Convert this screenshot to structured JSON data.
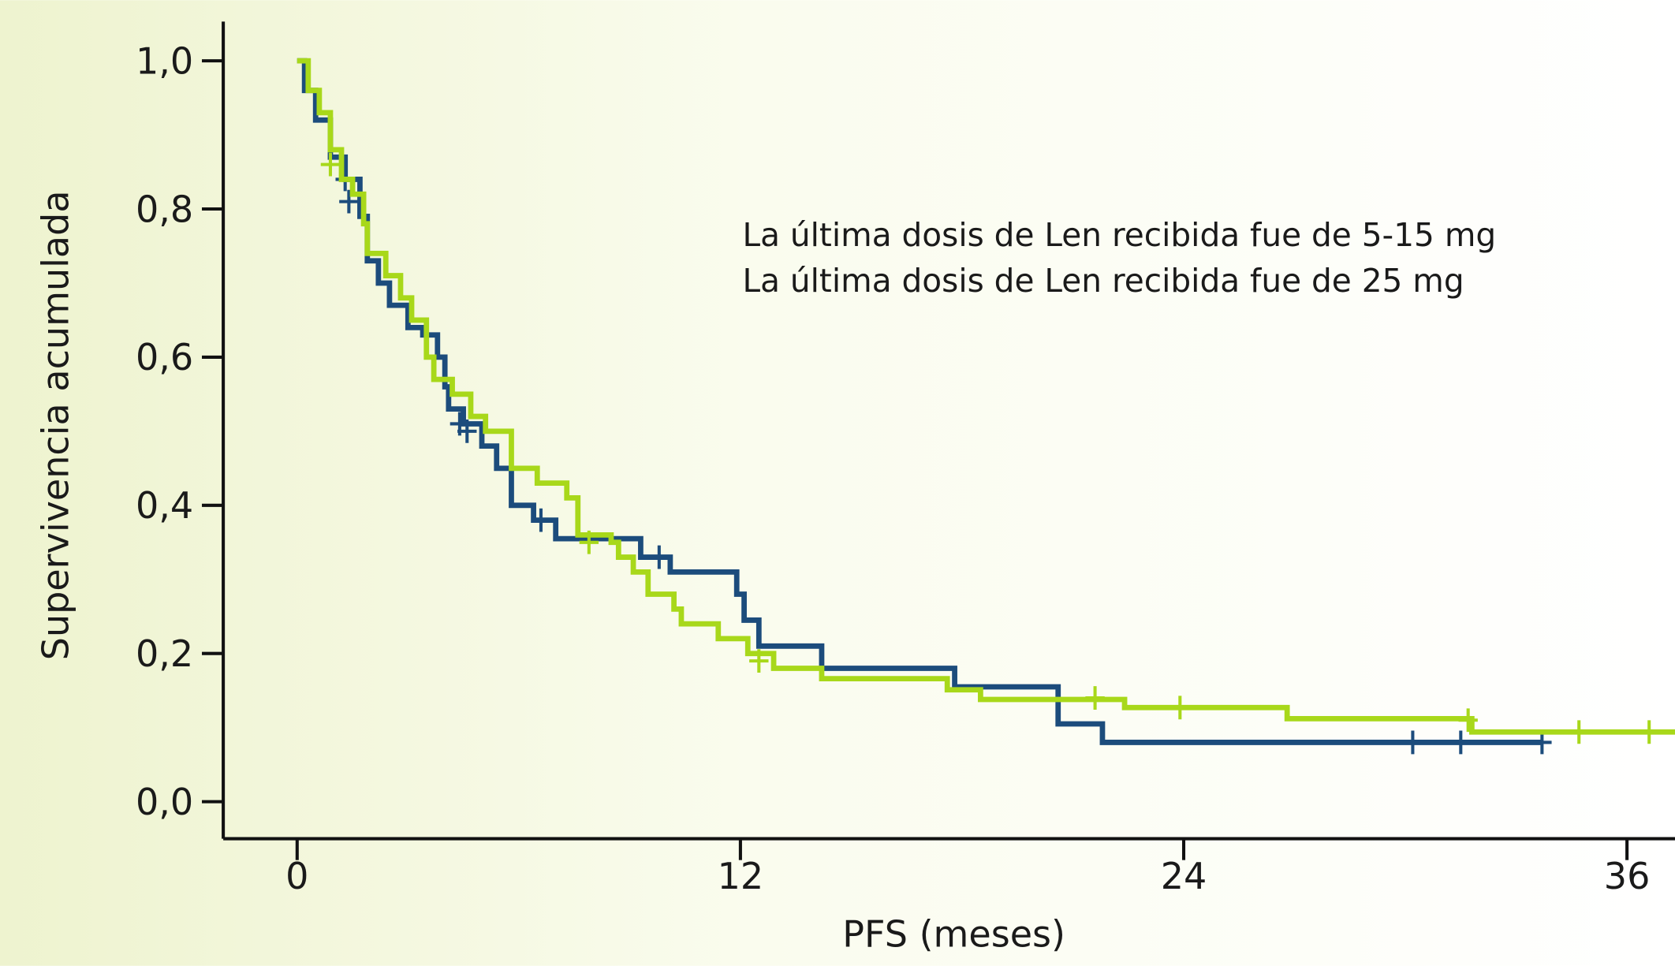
{
  "chart_data": {
    "type": "step",
    "xlabel": "PFS (meses)",
    "ylabel": "Supervivencia acumulada",
    "xlim": [
      -2,
      37.3
    ],
    "ylim": [
      -0.05,
      1.053
    ],
    "xticks": [
      0,
      12,
      24,
      36
    ],
    "yticks": [
      {
        "value": 0,
        "label": "0,0"
      },
      {
        "value": 0.2,
        "label": "0,2"
      },
      {
        "value": 0.4,
        "label": "0,4"
      },
      {
        "value": 0.6,
        "label": "0,6"
      },
      {
        "value": 0.8,
        "label": "0,8"
      },
      {
        "value": 1,
        "label": "1,0"
      }
    ],
    "series": [
      {
        "name": "La última dosis de Len recibida fue de 5-15 mg",
        "color": "#1c4c7c",
        "x": [
          0,
          0.2,
          0.5,
          0.9,
          1.3,
          1.7,
          1.9,
          2.2,
          2.5,
          3.0,
          3.4,
          3.8,
          4.0,
          4.1,
          4.5,
          5.0,
          5.4,
          5.8,
          6.4,
          7.0,
          9.3,
          10.1,
          11.9,
          12.1,
          12.5,
          14.2,
          17.8,
          20.6,
          21.8,
          33.7
        ],
        "values": [
          1.0,
          0.96,
          0.92,
          0.87,
          0.84,
          0.79,
          0.73,
          0.7,
          0.67,
          0.64,
          0.63,
          0.6,
          0.56,
          0.53,
          0.51,
          0.48,
          0.45,
          0.4,
          0.38,
          0.355,
          0.33,
          0.31,
          0.28,
          0.245,
          0.21,
          0.18,
          0.155,
          0.105,
          0.08,
          0.08
        ],
        "censor_x": [
          1.3,
          1.4,
          4.4,
          4.6,
          6.6,
          9.8,
          30.2,
          31.5,
          33.7
        ],
        "censor_values": [
          0.84,
          0.81,
          0.51,
          0.5,
          0.38,
          0.33,
          0.08,
          0.08,
          0.08
        ]
      },
      {
        "name": "La última dosis de Len recibida fue de 25 mg",
        "color": "#a8d81a",
        "x": [
          0,
          0.3,
          0.6,
          0.9,
          1.2,
          1.5,
          1.8,
          1.9,
          2.4,
          2.8,
          3.1,
          3.5,
          3.7,
          4.2,
          4.7,
          5.1,
          5.8,
          6.5,
          7.3,
          7.6,
          8.5,
          8.7,
          9.1,
          9.5,
          10.2,
          10.4,
          11.4,
          12.2,
          12.9,
          14.2,
          17.6,
          18.5,
          22.4,
          26.8,
          31.8,
          37.3
        ],
        "values": [
          1.0,
          0.96,
          0.93,
          0.88,
          0.84,
          0.82,
          0.78,
          0.74,
          0.71,
          0.68,
          0.65,
          0.6,
          0.57,
          0.55,
          0.52,
          0.5,
          0.45,
          0.43,
          0.41,
          0.36,
          0.35,
          0.33,
          0.31,
          0.28,
          0.26,
          0.24,
          0.22,
          0.2,
          0.18,
          0.166,
          0.151,
          0.138,
          0.127,
          0.112,
          0.094,
          0.094
        ],
        "censor_x": [
          0.9,
          7.9,
          12.5,
          21.6,
          23.9,
          31.7,
          34.7,
          36.6
        ],
        "censor_values": [
          0.86,
          0.35,
          0.19,
          0.14,
          0.127,
          0.11,
          0.094,
          0.094
        ]
      }
    ]
  }
}
